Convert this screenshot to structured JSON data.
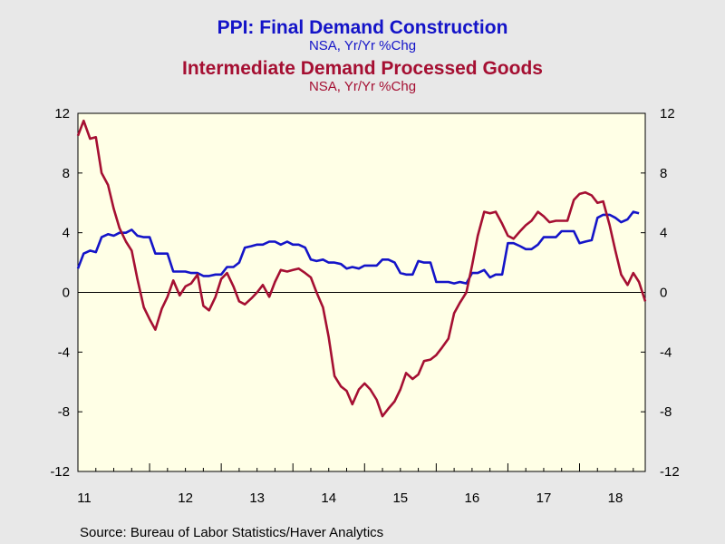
{
  "titles": {
    "series1_title": "PPI: Final Demand Construction",
    "series1_subtitle": "NSA, Yr/Yr %Chg",
    "series2_title": "Intermediate Demand Processed Goods",
    "series2_subtitle": "NSA, Yr/Yr %Chg"
  },
  "source": "Source:  Bureau of Labor Statistics/Haver Analytics",
  "colors": {
    "series1": "#1414c8",
    "series2": "#a50f32",
    "plot_bg": "#ffffe6",
    "page_bg": "#e8e8e8"
  },
  "chart_data": {
    "type": "line",
    "title": "PPI: Final Demand Construction / Intermediate Demand Processed Goods",
    "xlabel": "",
    "ylabel": "",
    "x_ticks": [
      "11",
      "12",
      "13",
      "14",
      "15",
      "16",
      "17",
      "18"
    ],
    "x_range": [
      2011.0,
      2018.917
    ],
    "ylim": [
      -12,
      12
    ],
    "y_ticks": [
      "12",
      "8",
      "4",
      "0",
      "-4",
      "-8",
      "-12"
    ],
    "y_tick_values": [
      12,
      8,
      4,
      0,
      -4,
      -8,
      -12
    ],
    "zero_line": true,
    "grid": false,
    "series": [
      {
        "name": "PPI: Final Demand Construction",
        "color": "#1414c8",
        "points": [
          [
            2011.0,
            1.6
          ],
          [
            2011.08,
            2.6
          ],
          [
            2011.17,
            2.8
          ],
          [
            2011.25,
            2.7
          ],
          [
            2011.33,
            3.7
          ],
          [
            2011.42,
            3.9
          ],
          [
            2011.5,
            3.8
          ],
          [
            2011.58,
            4.0
          ],
          [
            2011.67,
            4.0
          ],
          [
            2011.75,
            4.2
          ],
          [
            2011.83,
            3.8
          ],
          [
            2011.92,
            3.7
          ],
          [
            2012.0,
            3.7
          ],
          [
            2012.08,
            2.6
          ],
          [
            2012.17,
            2.6
          ],
          [
            2012.25,
            2.6
          ],
          [
            2012.33,
            1.4
          ],
          [
            2012.42,
            1.4
          ],
          [
            2012.5,
            1.4
          ],
          [
            2012.58,
            1.3
          ],
          [
            2012.67,
            1.3
          ],
          [
            2012.75,
            1.1
          ],
          [
            2012.83,
            1.1
          ],
          [
            2012.92,
            1.2
          ],
          [
            2013.0,
            1.2
          ],
          [
            2013.08,
            1.7
          ],
          [
            2013.17,
            1.7
          ],
          [
            2013.25,
            2.0
          ],
          [
            2013.33,
            3.0
          ],
          [
            2013.42,
            3.1
          ],
          [
            2013.5,
            3.2
          ],
          [
            2013.58,
            3.2
          ],
          [
            2013.67,
            3.4
          ],
          [
            2013.75,
            3.4
          ],
          [
            2013.83,
            3.2
          ],
          [
            2013.92,
            3.4
          ],
          [
            2014.0,
            3.2
          ],
          [
            2014.08,
            3.2
          ],
          [
            2014.17,
            3.0
          ],
          [
            2014.25,
            2.2
          ],
          [
            2014.33,
            2.1
          ],
          [
            2014.42,
            2.2
          ],
          [
            2014.5,
            2.0
          ],
          [
            2014.58,
            2.0
          ],
          [
            2014.67,
            1.9
          ],
          [
            2014.75,
            1.6
          ],
          [
            2014.83,
            1.7
          ],
          [
            2014.92,
            1.6
          ],
          [
            2015.0,
            1.8
          ],
          [
            2015.08,
            1.8
          ],
          [
            2015.17,
            1.8
          ],
          [
            2015.25,
            2.2
          ],
          [
            2015.33,
            2.2
          ],
          [
            2015.42,
            2.0
          ],
          [
            2015.5,
            1.3
          ],
          [
            2015.58,
            1.2
          ],
          [
            2015.67,
            1.2
          ],
          [
            2015.75,
            2.1
          ],
          [
            2015.83,
            2.0
          ],
          [
            2015.92,
            2.0
          ],
          [
            2016.0,
            0.7
          ],
          [
            2016.08,
            0.7
          ],
          [
            2016.17,
            0.7
          ],
          [
            2016.25,
            0.6
          ],
          [
            2016.33,
            0.7
          ],
          [
            2016.42,
            0.6
          ],
          [
            2016.5,
            1.3
          ],
          [
            2016.58,
            1.3
          ],
          [
            2016.67,
            1.5
          ],
          [
            2016.75,
            1.0
          ],
          [
            2016.83,
            1.2
          ],
          [
            2016.92,
            1.2
          ],
          [
            2017.0,
            3.3
          ],
          [
            2017.08,
            3.3
          ],
          [
            2017.17,
            3.1
          ],
          [
            2017.25,
            2.9
          ],
          [
            2017.33,
            2.9
          ],
          [
            2017.42,
            3.2
          ],
          [
            2017.5,
            3.7
          ],
          [
            2017.58,
            3.7
          ],
          [
            2017.67,
            3.7
          ],
          [
            2017.75,
            4.1
          ],
          [
            2017.83,
            4.1
          ],
          [
            2017.92,
            4.1
          ],
          [
            2018.0,
            3.3
          ],
          [
            2018.08,
            3.4
          ],
          [
            2018.17,
            3.5
          ],
          [
            2018.25,
            5.0
          ],
          [
            2018.33,
            5.2
          ],
          [
            2018.42,
            5.2
          ],
          [
            2018.5,
            5.0
          ],
          [
            2018.58,
            4.7
          ],
          [
            2018.67,
            4.9
          ],
          [
            2018.75,
            5.4
          ],
          [
            2018.83,
            5.3
          ]
        ]
      },
      {
        "name": "Intermediate Demand Processed Goods",
        "color": "#a50f32",
        "points": [
          [
            2011.0,
            10.5
          ],
          [
            2011.08,
            11.5
          ],
          [
            2011.17,
            10.3
          ],
          [
            2011.25,
            10.4
          ],
          [
            2011.33,
            8.0
          ],
          [
            2011.42,
            7.2
          ],
          [
            2011.5,
            5.6
          ],
          [
            2011.58,
            4.3
          ],
          [
            2011.67,
            3.4
          ],
          [
            2011.75,
            2.8
          ],
          [
            2011.83,
            0.9
          ],
          [
            2011.92,
            -1.0
          ],
          [
            2012.0,
            -1.8
          ],
          [
            2012.08,
            -2.5
          ],
          [
            2012.17,
            -1.1
          ],
          [
            2012.25,
            -0.3
          ],
          [
            2012.33,
            0.8
          ],
          [
            2012.42,
            -0.2
          ],
          [
            2012.5,
            0.4
          ],
          [
            2012.58,
            0.6
          ],
          [
            2012.67,
            1.2
          ],
          [
            2012.75,
            -0.9
          ],
          [
            2012.83,
            -1.2
          ],
          [
            2012.92,
            -0.3
          ],
          [
            2013.0,
            0.9
          ],
          [
            2013.08,
            1.3
          ],
          [
            2013.17,
            0.4
          ],
          [
            2013.25,
            -0.6
          ],
          [
            2013.33,
            -0.8
          ],
          [
            2013.42,
            -0.4
          ],
          [
            2013.5,
            0.0
          ],
          [
            2013.58,
            0.5
          ],
          [
            2013.67,
            -0.3
          ],
          [
            2013.75,
            0.7
          ],
          [
            2013.83,
            1.5
          ],
          [
            2013.92,
            1.4
          ],
          [
            2014.0,
            1.5
          ],
          [
            2014.08,
            1.6
          ],
          [
            2014.17,
            1.3
          ],
          [
            2014.25,
            1.0
          ],
          [
            2014.33,
            0.0
          ],
          [
            2014.42,
            -1.0
          ],
          [
            2014.5,
            -3.0
          ],
          [
            2014.58,
            -5.6
          ],
          [
            2014.67,
            -6.3
          ],
          [
            2014.75,
            -6.6
          ],
          [
            2014.83,
            -7.5
          ],
          [
            2014.92,
            -6.5
          ],
          [
            2015.0,
            -6.1
          ],
          [
            2015.08,
            -6.5
          ],
          [
            2015.17,
            -7.2
          ],
          [
            2015.25,
            -8.3
          ],
          [
            2015.33,
            -7.8
          ],
          [
            2015.42,
            -7.3
          ],
          [
            2015.5,
            -6.5
          ],
          [
            2015.58,
            -5.4
          ],
          [
            2015.67,
            -5.8
          ],
          [
            2015.75,
            -5.5
          ],
          [
            2015.83,
            -4.6
          ],
          [
            2015.92,
            -4.5
          ],
          [
            2016.0,
            -4.2
          ],
          [
            2016.08,
            -3.7
          ],
          [
            2016.17,
            -3.1
          ],
          [
            2016.25,
            -1.4
          ],
          [
            2016.33,
            -0.7
          ],
          [
            2016.42,
            0.0
          ],
          [
            2016.5,
            1.8
          ],
          [
            2016.58,
            3.8
          ],
          [
            2016.67,
            5.4
          ],
          [
            2016.75,
            5.3
          ],
          [
            2016.83,
            5.4
          ],
          [
            2016.92,
            4.6
          ],
          [
            2017.0,
            3.8
          ],
          [
            2017.08,
            3.6
          ],
          [
            2017.17,
            4.1
          ],
          [
            2017.25,
            4.5
          ],
          [
            2017.33,
            4.8
          ],
          [
            2017.42,
            5.4
          ],
          [
            2017.5,
            5.1
          ],
          [
            2017.58,
            4.7
          ],
          [
            2017.67,
            4.8
          ],
          [
            2017.75,
            4.8
          ],
          [
            2017.83,
            4.8
          ],
          [
            2017.92,
            6.2
          ],
          [
            2018.0,
            6.6
          ],
          [
            2018.08,
            6.7
          ],
          [
            2018.17,
            6.5
          ],
          [
            2018.25,
            6.0
          ],
          [
            2018.33,
            6.1
          ],
          [
            2018.42,
            4.5
          ],
          [
            2018.5,
            2.8
          ],
          [
            2018.58,
            1.2
          ],
          [
            2018.67,
            0.5
          ],
          [
            2018.75,
            1.3
          ],
          [
            2018.83,
            0.7
          ],
          [
            2018.917,
            -0.6
          ]
        ]
      }
    ]
  }
}
